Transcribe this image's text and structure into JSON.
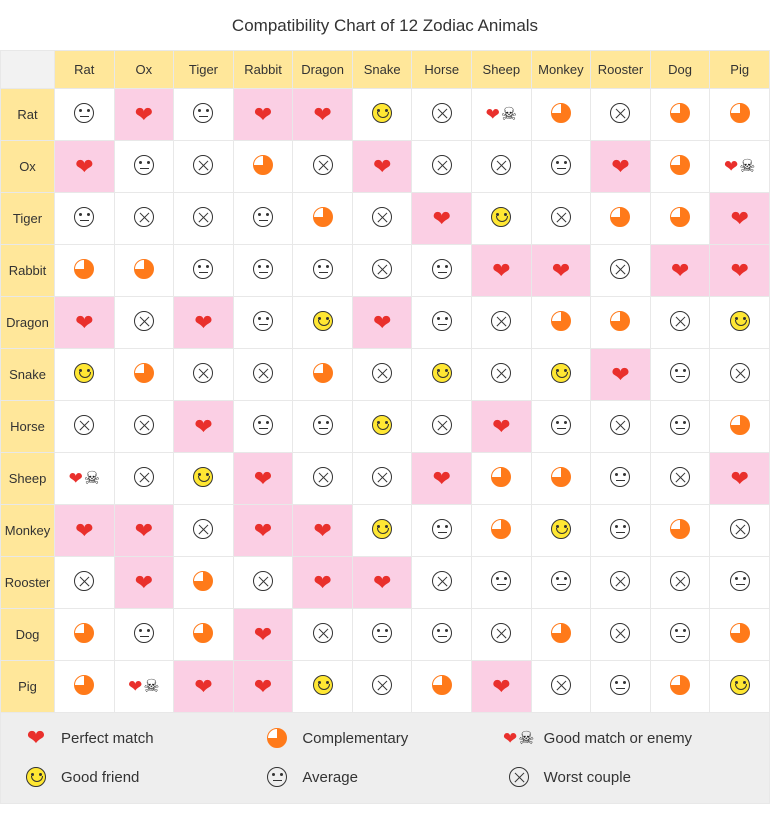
{
  "title": "Compatibility Chart of 12 Zodiac Animals",
  "animals": [
    "Rat",
    "Ox",
    "Tiger",
    "Rabbit",
    "Dragon",
    "Snake",
    "Horse",
    "Sheep",
    "Monkey",
    "Rooster",
    "Dog",
    "Pig"
  ],
  "icon_types": {
    "H": {
      "class": "heart",
      "name": "heart-icon",
      "highlight": true
    },
    "C": {
      "class": "pie",
      "name": "complementary-icon",
      "highlight": false
    },
    "G": {
      "class": "smile",
      "name": "good-friend-icon",
      "highlight": false
    },
    "A": {
      "class": "avg",
      "name": "average-icon",
      "highlight": false
    },
    "W": {
      "class": "worst",
      "name": "worst-couple-icon",
      "highlight": false
    },
    "E": {
      "class": "heartskull",
      "name": "good-match-or-enemy-icon",
      "highlight": false
    }
  },
  "grid": [
    [
      "A",
      "H",
      "A",
      "H",
      "H",
      "G",
      "W",
      "E",
      "C",
      "W",
      "C",
      "C"
    ],
    [
      "H",
      "A",
      "W",
      "C",
      "W",
      "H",
      "W",
      "W",
      "A",
      "H",
      "C",
      "E"
    ],
    [
      "A",
      "W",
      "W",
      "A",
      "C",
      "W",
      "H",
      "G",
      "W",
      "C",
      "C",
      "H"
    ],
    [
      "C",
      "C",
      "A",
      "A",
      "A",
      "W",
      "A",
      "H",
      "H",
      "W",
      "H",
      "H"
    ],
    [
      "H",
      "W",
      "H",
      "A",
      "G",
      "H",
      "A",
      "W",
      "C",
      "C",
      "W",
      "G"
    ],
    [
      "G",
      "C",
      "W",
      "W",
      "C",
      "W",
      "G",
      "W",
      "G",
      "H",
      "A",
      "W"
    ],
    [
      "W",
      "W",
      "H",
      "A",
      "A",
      "G",
      "W",
      "H",
      "A",
      "W",
      "A",
      "C"
    ],
    [
      "E",
      "W",
      "G",
      "H",
      "W",
      "W",
      "H",
      "C",
      "C",
      "A",
      "W",
      "H"
    ],
    [
      "H",
      "H",
      "W",
      "H",
      "H",
      "G",
      "A",
      "C",
      "G",
      "A",
      "C",
      "W"
    ],
    [
      "W",
      "H",
      "C",
      "W",
      "H",
      "H",
      "W",
      "A",
      "A",
      "W",
      "W",
      "A"
    ],
    [
      "C",
      "A",
      "C",
      "H",
      "W",
      "A",
      "A",
      "W",
      "C",
      "W",
      "A",
      "C"
    ],
    [
      "C",
      "E",
      "H",
      "H",
      "G",
      "W",
      "C",
      "H",
      "W",
      "A",
      "C",
      "G"
    ]
  ],
  "legend": [
    {
      "type": "H",
      "label": "Perfect match"
    },
    {
      "type": "C",
      "label": "Complementary"
    },
    {
      "type": "E",
      "label": "Good match or enemy"
    },
    {
      "type": "G",
      "label": "Good friend"
    },
    {
      "type": "A",
      "label": "Average"
    },
    {
      "type": "W",
      "label": "Worst couple"
    }
  ],
  "colors": {
    "header_bg": "#ffe79a",
    "heart": "#e9302c",
    "highlight": "#fbcfe4",
    "complementary": "#ff7a1a",
    "border": "#e8e8e8",
    "legend_bg": "#eeeeee"
  }
}
